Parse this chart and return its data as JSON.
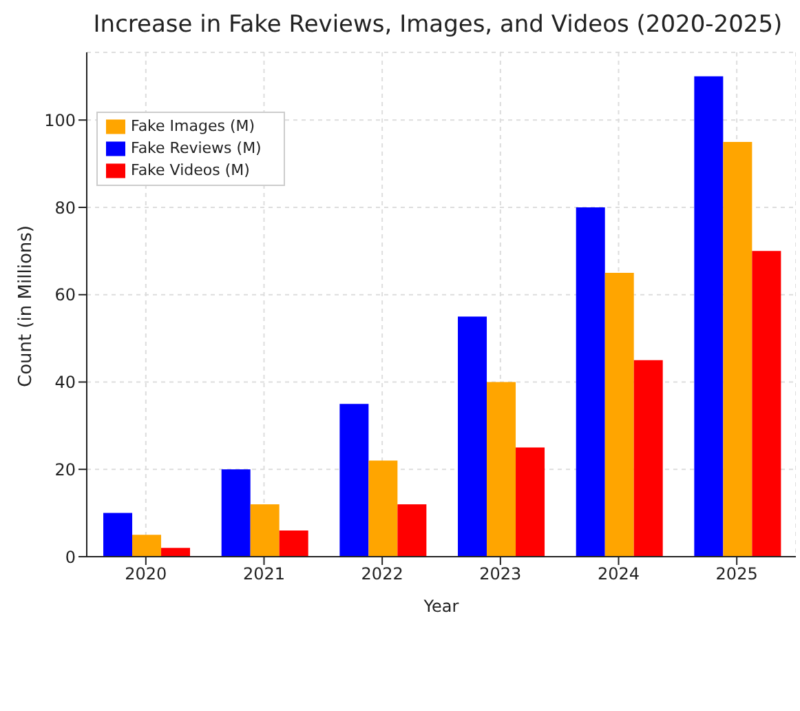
{
  "chart_data": {
    "type": "bar",
    "title": "Increase in Fake Reviews, Images, and Videos (2020-2025)",
    "xlabel": "Year",
    "ylabel": "Count (in Millions)",
    "categories": [
      "2020",
      "2021",
      "2022",
      "2023",
      "2024",
      "2025"
    ],
    "series": [
      {
        "name": "Fake Reviews (M)",
        "color": "#0000ff",
        "values": [
          10,
          20,
          35,
          55,
          80,
          110
        ]
      },
      {
        "name": "Fake Images (M)",
        "color": "#ffa500",
        "values": [
          5,
          12,
          22,
          40,
          65,
          95
        ]
      },
      {
        "name": "Fake Videos (M)",
        "color": "#ff0000",
        "values": [
          2,
          6,
          12,
          25,
          45,
          70
        ]
      }
    ],
    "ylim": [
      0,
      115.5
    ],
    "yticks": [
      0,
      20,
      40,
      60,
      80,
      100
    ],
    "grid": true,
    "legend": "top left"
  }
}
